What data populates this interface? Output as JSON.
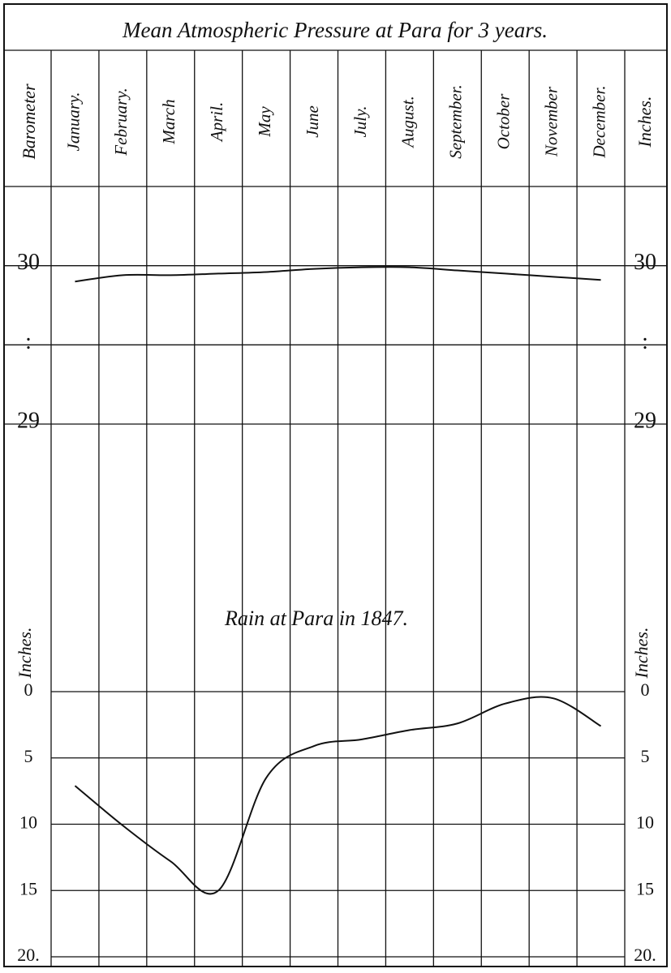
{
  "chart_data": [
    {
      "type": "line",
      "title": "Mean Atmospheric Pressure at Para for 3 years.",
      "y_label": "Barometer",
      "y2_label": "Inches.",
      "categories": [
        "January.",
        "February.",
        "March",
        "April.",
        "May",
        "June",
        "July.",
        "August.",
        "September.",
        "October",
        "November",
        "December."
      ],
      "series": [
        {
          "name": "Barometer",
          "color": "#111111",
          "values": [
            29.9,
            29.94,
            29.94,
            29.95,
            29.96,
            29.98,
            29.99,
            29.99,
            29.97,
            29.95,
            29.93,
            29.91
          ]
        }
      ],
      "ylim": [
        29,
        30.5
      ],
      "yticks": [
        29,
        {
          "value": 29.5,
          "label": ":"
        },
        30
      ],
      "grid": true
    },
    {
      "type": "line",
      "title": "Rain at Para in 1847.",
      "y_label": "Inches.",
      "series": [
        {
          "name": "Rain",
          "color": "#111111",
          "values": [
            7.1,
            10.1,
            12.8,
            15,
            6.5,
            4.1,
            3.6,
            2.9,
            2.4,
            0.9,
            0.5,
            2.6
          ]
        }
      ],
      "ylim": [
        0,
        20
      ],
      "y_inverted": true,
      "yticks": [
        0,
        5,
        10,
        15,
        {
          "value": 20,
          "label": "20."
        }
      ],
      "grid": true
    }
  ]
}
